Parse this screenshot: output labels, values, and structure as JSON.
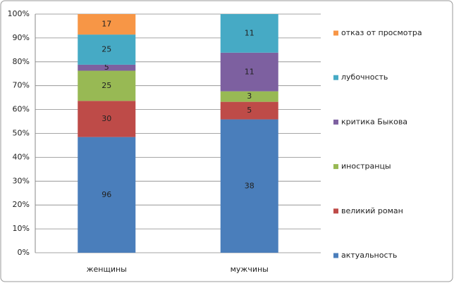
{
  "chart_data": {
    "type": "stacked_percent_bar",
    "categories": [
      "женщины",
      "мужчины"
    ],
    "series": [
      {
        "name": "актуальность",
        "color": "#4a7ebb",
        "values": [
          96,
          38
        ]
      },
      {
        "name": "великий роман",
        "color": "#be4b48",
        "values": [
          30,
          5
        ]
      },
      {
        "name": "иностранцы",
        "color": "#98b954",
        "values": [
          25,
          3
        ]
      },
      {
        "name": "критика Быкова",
        "color": "#7d60a0",
        "values": [
          5,
          11
        ]
      },
      {
        "name": "лубочность",
        "color": "#46aac5",
        "values": [
          25,
          11
        ]
      },
      {
        "name": "отказ от просмотра",
        "color": "#f79646",
        "values": [
          17,
          0
        ]
      }
    ],
    "ylim": [
      0,
      100
    ],
    "yticks": [
      {
        "value": 0,
        "label": "0%"
      },
      {
        "value": 10,
        "label": "10%"
      },
      {
        "value": 20,
        "label": "20%"
      },
      {
        "value": 30,
        "label": "30%"
      },
      {
        "value": 40,
        "label": "40%"
      },
      {
        "value": 50,
        "label": "50%"
      },
      {
        "value": 60,
        "label": "60%"
      },
      {
        "value": 70,
        "label": "70%"
      },
      {
        "value": 80,
        "label": "80%"
      },
      {
        "value": 90,
        "label": "90%"
      },
      {
        "value": 100,
        "label": "100%"
      }
    ],
    "grid": true,
    "legend": "right"
  }
}
